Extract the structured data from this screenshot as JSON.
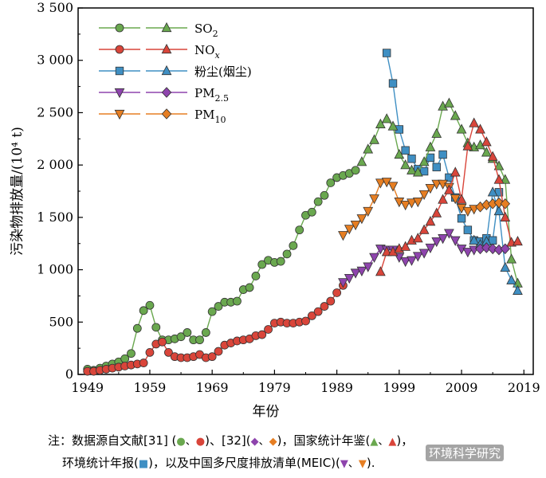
{
  "chart_data": {
    "type": "line",
    "xlabel": "年份",
    "ylabel": "污染物排放量/(10⁴ t)",
    "xlim": [
      1947.5,
      2020.5
    ],
    "ylim": [
      0,
      3500
    ],
    "x_ticks": [
      1949,
      1959,
      1969,
      1979,
      1989,
      1999,
      2009,
      2019
    ],
    "y_ticks": [
      0,
      500,
      1000,
      1500,
      2000,
      2500,
      3000,
      3500
    ],
    "y_tick_labels": [
      "0",
      "500",
      "1 000",
      "1 500",
      "2 000",
      "2 500",
      "3 000",
      "3 500"
    ],
    "colors": {
      "so2": "#6aa84f",
      "nox": "#d9453a",
      "dust": "#3f8fc3",
      "pm25": "#8e44ad",
      "pm10": "#e67e22"
    },
    "series": [
      {
        "name": "SO2",
        "legend_row": 0,
        "color": "so2",
        "marker": "circle",
        "x": [
          1949,
          1950,
          1951,
          1952,
          1953,
          1954,
          1955,
          1956,
          1957,
          1958,
          1959,
          1960,
          1961,
          1962,
          1963,
          1964,
          1965,
          1966,
          1967,
          1968,
          1969,
          1970,
          1971,
          1972,
          1973,
          1974,
          1975,
          1976,
          1977,
          1978,
          1979,
          1980,
          1981,
          1982,
          1983,
          1984,
          1985,
          1986,
          1987,
          1988,
          1989,
          1990,
          1991,
          1992
        ],
        "y": [
          50,
          40,
          60,
          80,
          100,
          120,
          150,
          200,
          440,
          610,
          660,
          450,
          330,
          330,
          340,
          360,
          400,
          330,
          330,
          400,
          600,
          650,
          690,
          690,
          700,
          810,
          830,
          940,
          1050,
          1090,
          1070,
          1080,
          1150,
          1230,
          1380,
          1520,
          1550,
          1650,
          1710,
          1830,
          1880,
          1900,
          1920,
          1950
        ]
      },
      {
        "name": "NOx",
        "legend_row": 1,
        "color": "nox",
        "marker": "circle",
        "x": [
          1949,
          1950,
          1951,
          1952,
          1953,
          1954,
          1955,
          1956,
          1957,
          1958,
          1959,
          1960,
          1961,
          1962,
          1963,
          1964,
          1965,
          1966,
          1967,
          1968,
          1969,
          1970,
          1971,
          1972,
          1973,
          1974,
          1975,
          1976,
          1977,
          1978,
          1979,
          1980,
          1981,
          1982,
          1983,
          1984,
          1985,
          1986,
          1987,
          1988,
          1989,
          1990
        ],
        "y": [
          30,
          30,
          40,
          50,
          60,
          70,
          80,
          90,
          100,
          110,
          210,
          290,
          310,
          210,
          170,
          160,
          160,
          170,
          190,
          160,
          170,
          220,
          280,
          300,
          320,
          330,
          340,
          370,
          380,
          430,
          490,
          500,
          490,
          490,
          500,
          510,
          560,
          600,
          650,
          700,
          780,
          850
        ]
      },
      {
        "name": "粉尘(烟尘)",
        "legend_row": 2,
        "color": "dust",
        "marker": "square",
        "x": [
          1997,
          1998,
          1999,
          2000,
          2001,
          2002,
          2003,
          2004,
          2005,
          2006,
          2007,
          2008,
          2009,
          2010,
          2011,
          2012,
          2013,
          2014,
          2015
        ],
        "y": [
          3070,
          2780,
          2340,
          2140,
          2060,
          1960,
          1940,
          2070,
          1980,
          2100,
          1880,
          1690,
          1490,
          1380,
          1280,
          1270,
          1300,
          1280,
          1740
        ]
      },
      {
        "name": "PM2.5",
        "legend_row": 3,
        "color": "pm25",
        "marker": "tri-down",
        "x": [
          1990,
          1991,
          1992,
          1993,
          1994,
          1995,
          1996,
          1997,
          1998,
          1999,
          2000,
          2001,
          2002,
          2003,
          2004,
          2005,
          2006,
          2007,
          2008,
          2009,
          2010,
          2011
        ],
        "y": [
          880,
          920,
          970,
          990,
          1030,
          1120,
          1200,
          1190,
          1190,
          1120,
          1080,
          1090,
          1130,
          1160,
          1210,
          1270,
          1300,
          1350,
          1280,
          1200,
          1170,
          1190
        ]
      },
      {
        "name": "PM10",
        "legend_row": 4,
        "color": "pm10",
        "marker": "tri-down",
        "x": [
          1990,
          1991,
          1992,
          1993,
          1994,
          1995,
          1996,
          1997,
          1998,
          1999,
          2000,
          2001,
          2002,
          2003,
          2004,
          2005,
          2006,
          2007,
          2008,
          2009,
          2010,
          2011
        ],
        "y": [
          1330,
          1390,
          1430,
          1490,
          1560,
          1680,
          1830,
          1840,
          1800,
          1650,
          1620,
          1640,
          1650,
          1720,
          1780,
          1820,
          1820,
          1790,
          1680,
          1590,
          1560,
          1580
        ]
      },
      {
        "name": "SO2",
        "legend_row": 0,
        "color": "so2",
        "marker": "triangle",
        "x": [
          1993,
          1994,
          1995,
          1996,
          1997,
          1998,
          1999,
          2000,
          2001,
          2002,
          2003,
          2004,
          2005,
          2006,
          2007,
          2008,
          2009,
          2010,
          2011,
          2012,
          2013,
          2014,
          2015,
          2016,
          2017,
          2018
        ],
        "y": [
          2030,
          2150,
          2240,
          2390,
          2440,
          2370,
          2100,
          2000,
          1950,
          1930,
          2030,
          2170,
          2300,
          2560,
          2590,
          2470,
          2340,
          2210,
          2170,
          2190,
          2120,
          2060,
          1990,
          1860,
          1100,
          870
        ]
      },
      {
        "name": "NOx",
        "legend_row": 1,
        "color": "nox",
        "marker": "triangle",
        "x": [
          1996,
          1997,
          1998,
          1999,
          2000,
          2001,
          2002,
          2003,
          2004,
          2005,
          2006,
          2007,
          2008,
          2009,
          2010,
          2011,
          2012,
          2013,
          2014,
          2015,
          2016,
          2017,
          2018
        ],
        "y": [
          980,
          1170,
          1170,
          1200,
          1220,
          1280,
          1300,
          1380,
          1460,
          1540,
          1670,
          1760,
          1930,
          1670,
          2180,
          2400,
          2340,
          2220,
          2080,
          1860,
          1500,
          1260,
          1270
        ]
      },
      {
        "name": "粉尘(烟尘)",
        "legend_row": 2,
        "color": "dust",
        "marker": "triangle",
        "x": [
          2011,
          2012,
          2013,
          2014,
          2015,
          2016,
          2017,
          2018
        ],
        "y": [
          1280,
          1240,
          1270,
          1740,
          1560,
          1020,
          900,
          800
        ]
      },
      {
        "name": "PM2.5",
        "legend_row": 3,
        "color": "pm25",
        "marker": "diamond",
        "x": [
          2012,
          2013,
          2014,
          2015,
          2016
        ],
        "y": [
          1200,
          1210,
          1200,
          1190,
          1200
        ]
      },
      {
        "name": "PM10",
        "legend_row": 4,
        "color": "pm10",
        "marker": "diamond",
        "x": [
          2012,
          2013,
          2014,
          2015,
          2016
        ],
        "y": [
          1600,
          1620,
          1630,
          1640,
          1630
        ]
      }
    ]
  },
  "legend": [
    {
      "name": "SO",
      "sub": "2",
      "italic_sub": false
    },
    {
      "name": "NO",
      "sub": "x",
      "italic_sub": true
    },
    {
      "name": "粉尘(烟尘)",
      "sub": "",
      "italic_sub": false
    },
    {
      "name": "PM",
      "sub": "2.5",
      "italic_sub": false
    },
    {
      "name": "PM",
      "sub": "10",
      "italic_sub": false
    }
  ],
  "note": {
    "line1_prefix": "注：数据源自文献[31] (",
    "line1_mid": ")、[32](",
    "line1_mid2": ")，国家统计年鉴(",
    "line1_end": ")，",
    "line2_prefix": "环境统计年报(",
    "line2_mid": ")，以及中国多尺度排放清单(MEIC)(",
    "line2_end": ")."
  },
  "watermark": "环境科学研究"
}
